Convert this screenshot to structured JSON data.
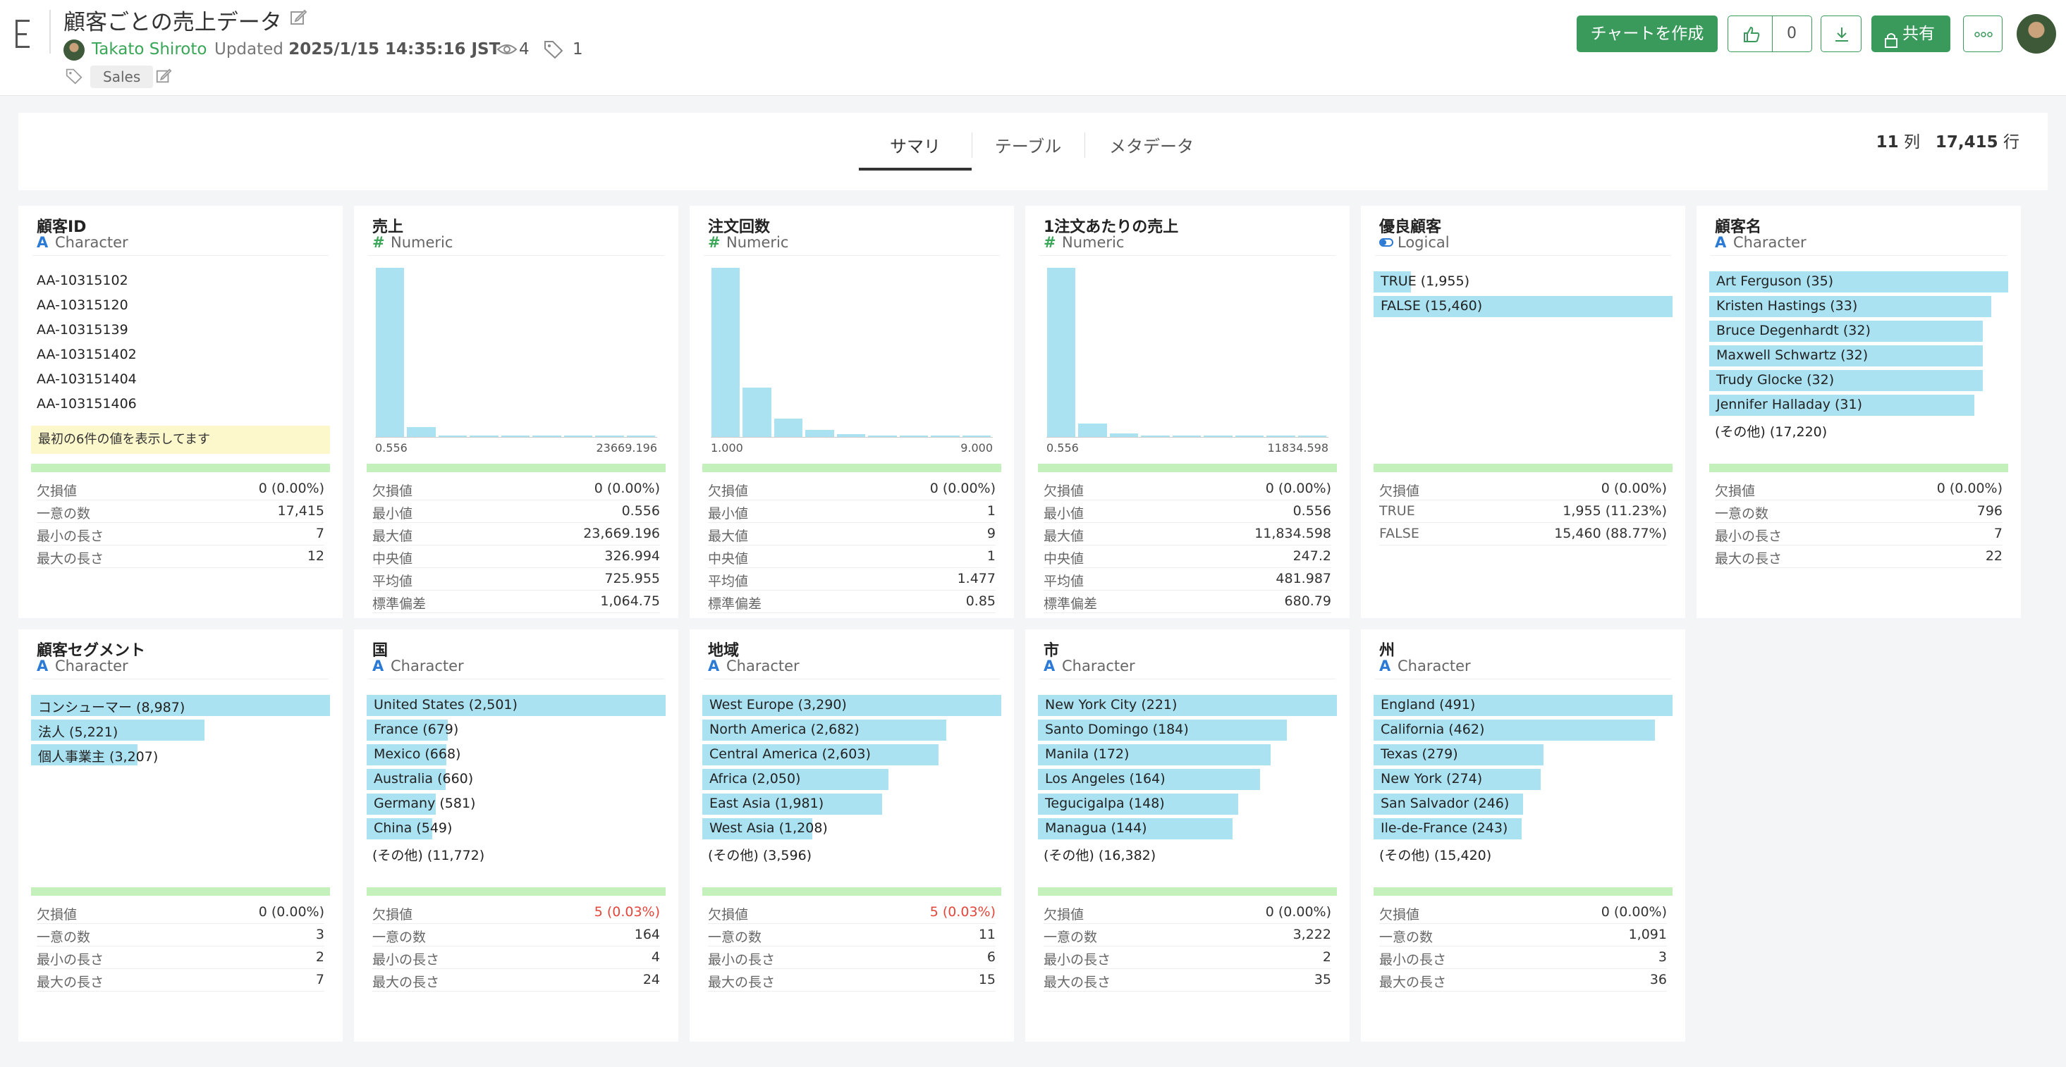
{
  "header": {
    "title": "顧客ごとの売上データ",
    "author": "Takato Shiroto",
    "updated_label": "Updated",
    "updated_time": "2025/1/15 14:35:16 JST",
    "views": "4",
    "tag_count": "1",
    "tag": "Sales",
    "create_chart_label": "チャートを作成",
    "like_count": "0",
    "share_label": "共有",
    "accent_color": "#3a9a5b"
  },
  "tabs": [
    "サマリ",
    "テーブル",
    "メタデータ"
  ],
  "summary": {
    "cols": "11",
    "cols_unit": "列",
    "rows": "17,415",
    "rows_unit": "行"
  },
  "icons": {
    "char": "A",
    "num": "#",
    "logical": "toggle-icon"
  },
  "columns": [
    {
      "name": "顧客ID",
      "type": "Character",
      "kind": "list",
      "values": [
        "AA-10315102",
        "AA-10315120",
        "AA-10315139",
        "AA-103151402",
        "AA-103151404",
        "AA-103151406"
      ],
      "note": "最初の6件の値を表示してます",
      "stats": [
        [
          "欠損値",
          "0 (0.00%)"
        ],
        [
          "一意の数",
          "17,415"
        ],
        [
          "最小の長さ",
          "7"
        ],
        [
          "最大の長さ",
          "12"
        ]
      ]
    },
    {
      "name": "売上",
      "type": "Numeric",
      "kind": "hist",
      "hist": [
        100,
        6,
        1,
        0.6,
        0.5,
        0.4,
        0.3,
        0.3,
        0.3
      ],
      "axis_min": "0.556",
      "axis_max": "23669.196",
      "stats": [
        [
          "欠損値",
          "0 (0.00%)"
        ],
        [
          "最小値",
          "0.556"
        ],
        [
          "最大値",
          "23,669.196"
        ],
        [
          "中央値",
          "326.994"
        ],
        [
          "平均値",
          "725.955"
        ],
        [
          "標準偏差",
          "1,064.75"
        ]
      ]
    },
    {
      "name": "注文回数",
      "type": "Numeric",
      "kind": "hist",
      "hist": [
        100,
        29,
        11,
        4,
        1.5,
        1,
        0.8,
        0.5,
        0.5
      ],
      "axis_min": "1.000",
      "axis_max": "9.000",
      "stats": [
        [
          "欠損値",
          "0 (0.00%)"
        ],
        [
          "最小値",
          "1"
        ],
        [
          "最大値",
          "9"
        ],
        [
          "中央値",
          "1"
        ],
        [
          "平均値",
          "1.477"
        ],
        [
          "標準偏差",
          "0.85"
        ]
      ]
    },
    {
      "name": "1注文あたりの売上",
      "type": "Numeric",
      "kind": "hist",
      "hist": [
        100,
        8,
        2,
        0.8,
        0.5,
        0.4,
        0.3,
        0.3,
        0.3
      ],
      "axis_min": "0.556",
      "axis_max": "11834.598",
      "stats": [
        [
          "欠損値",
          "0 (0.00%)"
        ],
        [
          "最小値",
          "0.556"
        ],
        [
          "最大値",
          "11,834.598"
        ],
        [
          "中央値",
          "247.2"
        ],
        [
          "平均値",
          "481.987"
        ],
        [
          "標準偏差",
          "680.79"
        ]
      ]
    },
    {
      "name": "優良顧客",
      "type": "Logical",
      "kind": "bars",
      "bars": [
        [
          "TRUE (1,955)",
          0.126
        ],
        [
          "FALSE (15,460)",
          1.0
        ]
      ],
      "other": "",
      "stats": [
        [
          "欠損値",
          "0 (0.00%)"
        ],
        [
          "TRUE",
          "1,955 (11.23%)"
        ],
        [
          "FALSE",
          "15,460 (88.77%)"
        ]
      ]
    },
    {
      "name": "顧客名",
      "type": "Character",
      "kind": "bars",
      "bars": [
        [
          "Art Ferguson (35)",
          1.0
        ],
        [
          "Kristen Hastings (33)",
          0.943
        ],
        [
          "Bruce Degenhardt (32)",
          0.914
        ],
        [
          "Maxwell Schwartz (32)",
          0.914
        ],
        [
          "Trudy Glocke (32)",
          0.914
        ],
        [
          "Jennifer Halladay (31)",
          0.886
        ]
      ],
      "other": "(その他) (17,220)",
      "stats": [
        [
          "欠損値",
          "0 (0.00%)"
        ],
        [
          "一意の数",
          "796"
        ],
        [
          "最小の長さ",
          "7"
        ],
        [
          "最大の長さ",
          "22"
        ]
      ]
    },
    {
      "name": "顧客セグメント",
      "type": "Character",
      "kind": "bars",
      "bars": [
        [
          "コンシューマー (8,987)",
          1.0
        ],
        [
          "法人 (5,221)",
          0.581
        ],
        [
          "個人事業主 (3,207)",
          0.357
        ]
      ],
      "other": "",
      "stats": [
        [
          "欠損値",
          "0 (0.00%)"
        ],
        [
          "一意の数",
          "3"
        ],
        [
          "最小の長さ",
          "2"
        ],
        [
          "最大の長さ",
          "7"
        ]
      ]
    },
    {
      "name": "国",
      "type": "Character",
      "kind": "bars",
      "bars": [
        [
          "United States (2,501)",
          1.0
        ],
        [
          "France (679)",
          0.271
        ],
        [
          "Mexico (668)",
          0.267
        ],
        [
          "Australia (660)",
          0.264
        ],
        [
          "Germany (581)",
          0.232
        ],
        [
          "China (549)",
          0.22
        ]
      ],
      "other": "(その他) (11,772)",
      "stats": [
        [
          "欠損値",
          "5 (0.03%)",
          "red"
        ],
        [
          "一意の数",
          "164"
        ],
        [
          "最小の長さ",
          "4"
        ],
        [
          "最大の長さ",
          "24"
        ]
      ]
    },
    {
      "name": "地域",
      "type": "Character",
      "kind": "bars",
      "bars": [
        [
          "West Europe (3,290)",
          1.0
        ],
        [
          "North America (2,682)",
          0.815
        ],
        [
          "Central America (2,603)",
          0.791
        ],
        [
          "Africa (2,050)",
          0.623
        ],
        [
          "East Asia (1,981)",
          0.602
        ],
        [
          "West Asia (1,208)",
          0.367
        ]
      ],
      "other": "(その他) (3,596)",
      "stats": [
        [
          "欠損値",
          "5 (0.03%)",
          "red"
        ],
        [
          "一意の数",
          "11"
        ],
        [
          "最小の長さ",
          "6"
        ],
        [
          "最大の長さ",
          "15"
        ]
      ]
    },
    {
      "name": "市",
      "type": "Character",
      "kind": "bars",
      "bars": [
        [
          "New York City (221)",
          1.0
        ],
        [
          "Santo Domingo (184)",
          0.833
        ],
        [
          "Manila (172)",
          0.778
        ],
        [
          "Los Angeles (164)",
          0.742
        ],
        [
          "Tegucigalpa (148)",
          0.67
        ],
        [
          "Managua (144)",
          0.652
        ]
      ],
      "other": "(その他) (16,382)",
      "stats": [
        [
          "欠損値",
          "0 (0.00%)"
        ],
        [
          "一意の数",
          "3,222"
        ],
        [
          "最小の長さ",
          "2"
        ],
        [
          "最大の長さ",
          "35"
        ]
      ]
    },
    {
      "name": "州",
      "type": "Character",
      "kind": "bars",
      "bars": [
        [
          "England (491)",
          1.0
        ],
        [
          "California (462)",
          0.941
        ],
        [
          "Texas (279)",
          0.568
        ],
        [
          "New York (274)",
          0.558
        ],
        [
          "San Salvador (246)",
          0.501
        ],
        [
          "Ile-de-France (243)",
          0.495
        ]
      ],
      "other": "(その他) (15,420)",
      "stats": [
        [
          "欠損値",
          "0 (0.00%)"
        ],
        [
          "一意の数",
          "1,091"
        ],
        [
          "最小の長さ",
          "3"
        ],
        [
          "最大の長さ",
          "36"
        ]
      ]
    }
  ]
}
